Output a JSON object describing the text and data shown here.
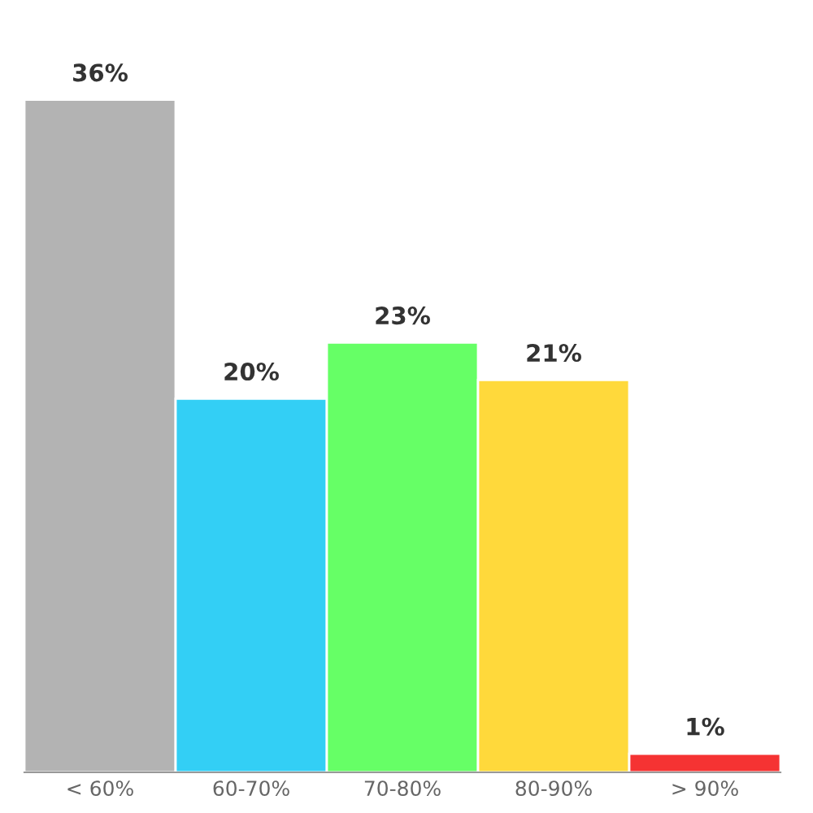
{
  "chart_data": {
    "type": "bar",
    "categories": [
      "< 60%",
      "60-70%",
      "70-80%",
      "80-90%",
      "> 90%"
    ],
    "values": [
      36,
      20,
      23,
      21,
      1
    ],
    "value_labels": [
      "36%",
      "20%",
      "23%",
      "21%",
      "1%"
    ],
    "colors": [
      "#b3b3b3",
      "#33cff5",
      "#66ff66",
      "#ffd93b",
      "#f53333"
    ],
    "tick_labels": "x",
    "grid": false,
    "legend": false
  }
}
